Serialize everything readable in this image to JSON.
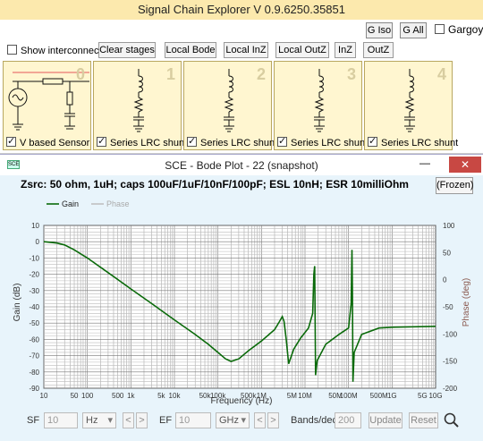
{
  "main": {
    "title": "Signal Chain Explorer V 0.9.6250.35851",
    "g_iso": "G Iso",
    "g_all": "G All",
    "gargoyle": "Gargoy",
    "toolbar": {
      "show_interconnects": "Show interconnects",
      "clear_stages": "Clear stages",
      "local_bode": "Local Bode",
      "local_inz": "Local InZ",
      "local_outz": "Local OutZ",
      "inz": "InZ",
      "outz": "OutZ"
    },
    "stages": [
      {
        "number": "0",
        "label": "V based Sensor",
        "checked": true
      },
      {
        "number": "1",
        "label": "Series LRC shunt",
        "checked": true
      },
      {
        "number": "2",
        "label": "Series LRC shunt",
        "checked": true
      },
      {
        "number": "3",
        "label": "Series LRC shunt",
        "checked": true
      },
      {
        "number": "4",
        "label": "Series LRC shunt",
        "checked": true
      }
    ]
  },
  "bode": {
    "title": "SCE - Bode Plot - 22  (snapshot)",
    "subtitle": "Zsrc: 50 ohm, 1uH; caps 100uF/1uF/10nF/100pF; ESL 10nH; ESR 10milliOhm",
    "frozen": "(Frozen)",
    "minimize": "—",
    "close": "✕",
    "bottom": {
      "sf_label": "SF",
      "sf_value": "10",
      "sf_unit": "Hz",
      "ef_label": "EF",
      "ef_value": "10",
      "ef_unit": "GHz",
      "prev": "<",
      "next": ">",
      "bands_label": "Bands/dec",
      "bands_value": "200",
      "update": "Update",
      "reset": "Reset"
    }
  },
  "chart_data": {
    "type": "line",
    "xscale": "log",
    "xlabel": "Frequency (Hz)",
    "ylabel": "Gain (dB)",
    "y2label": "Phase (deg)",
    "xlim": [
      10,
      10000000000
    ],
    "ylim": [
      -90,
      10
    ],
    "y2lim": [
      -200,
      100
    ],
    "grid": true,
    "legend": "top-left",
    "x_ticks": [
      "10",
      "50",
      "100",
      "500",
      "1k",
      "5k",
      "10k",
      "50k",
      "100k",
      "500k",
      "1M",
      "5M",
      "10M",
      "50M",
      "100M",
      "500M",
      "1G",
      "5G",
      "10G"
    ],
    "x_tick_values": [
      10,
      50,
      100,
      500,
      1000,
      5000,
      10000,
      50000,
      100000,
      500000,
      1000000,
      5000000,
      10000000,
      50000000,
      100000000,
      500000000,
      1000000000,
      5000000000,
      10000000000
    ],
    "y_ticks": [
      "10",
      "0",
      "-10",
      "-20",
      "-30",
      "-40",
      "-50",
      "-60",
      "-70",
      "-80",
      "-90"
    ],
    "y2_ticks": [
      "100",
      "50",
      "0",
      "-50",
      "-100",
      "-150",
      "-200"
    ],
    "series": [
      {
        "name": "Gain",
        "color": "#0a6a0a",
        "points": [
          [
            10,
            0
          ],
          [
            20,
            -0.8
          ],
          [
            30,
            -2
          ],
          [
            50,
            -5
          ],
          [
            100,
            -10
          ],
          [
            300,
            -19
          ],
          [
            1000,
            -29
          ],
          [
            3000,
            -38
          ],
          [
            10000,
            -48
          ],
          [
            30000,
            -57
          ],
          [
            60000,
            -63
          ],
          [
            100000,
            -68
          ],
          [
            150000,
            -72
          ],
          [
            200000,
            -73.5
          ],
          [
            300000,
            -72
          ],
          [
            500000,
            -67
          ],
          [
            1000000,
            -61
          ],
          [
            2000000,
            -54
          ],
          [
            2600000,
            -49
          ],
          [
            3000000,
            -46
          ],
          [
            3300000,
            -49
          ],
          [
            3700000,
            -60
          ],
          [
            4200000,
            -75
          ],
          [
            5500000,
            -66
          ],
          [
            8000000,
            -59
          ],
          [
            12000000,
            -53
          ],
          [
            15000000,
            -44
          ],
          [
            16000000,
            -20
          ],
          [
            16700000,
            -15
          ],
          [
            17000000,
            -40
          ],
          [
            17500000,
            -82
          ],
          [
            19000000,
            -73
          ],
          [
            30000000,
            -63
          ],
          [
            60000000,
            -57
          ],
          [
            100000000,
            -53
          ],
          [
            115000000,
            -38
          ],
          [
            120000000,
            -5
          ],
          [
            123000000,
            -30
          ],
          [
            126000000,
            -86
          ],
          [
            135000000,
            -68
          ],
          [
            200000000,
            -57
          ],
          [
            500000000,
            -53
          ],
          [
            1000000000,
            -52.5
          ],
          [
            10000000000,
            -52
          ]
        ]
      },
      {
        "name": "Phase",
        "color": "#c0c0c0",
        "points": []
      }
    ]
  }
}
